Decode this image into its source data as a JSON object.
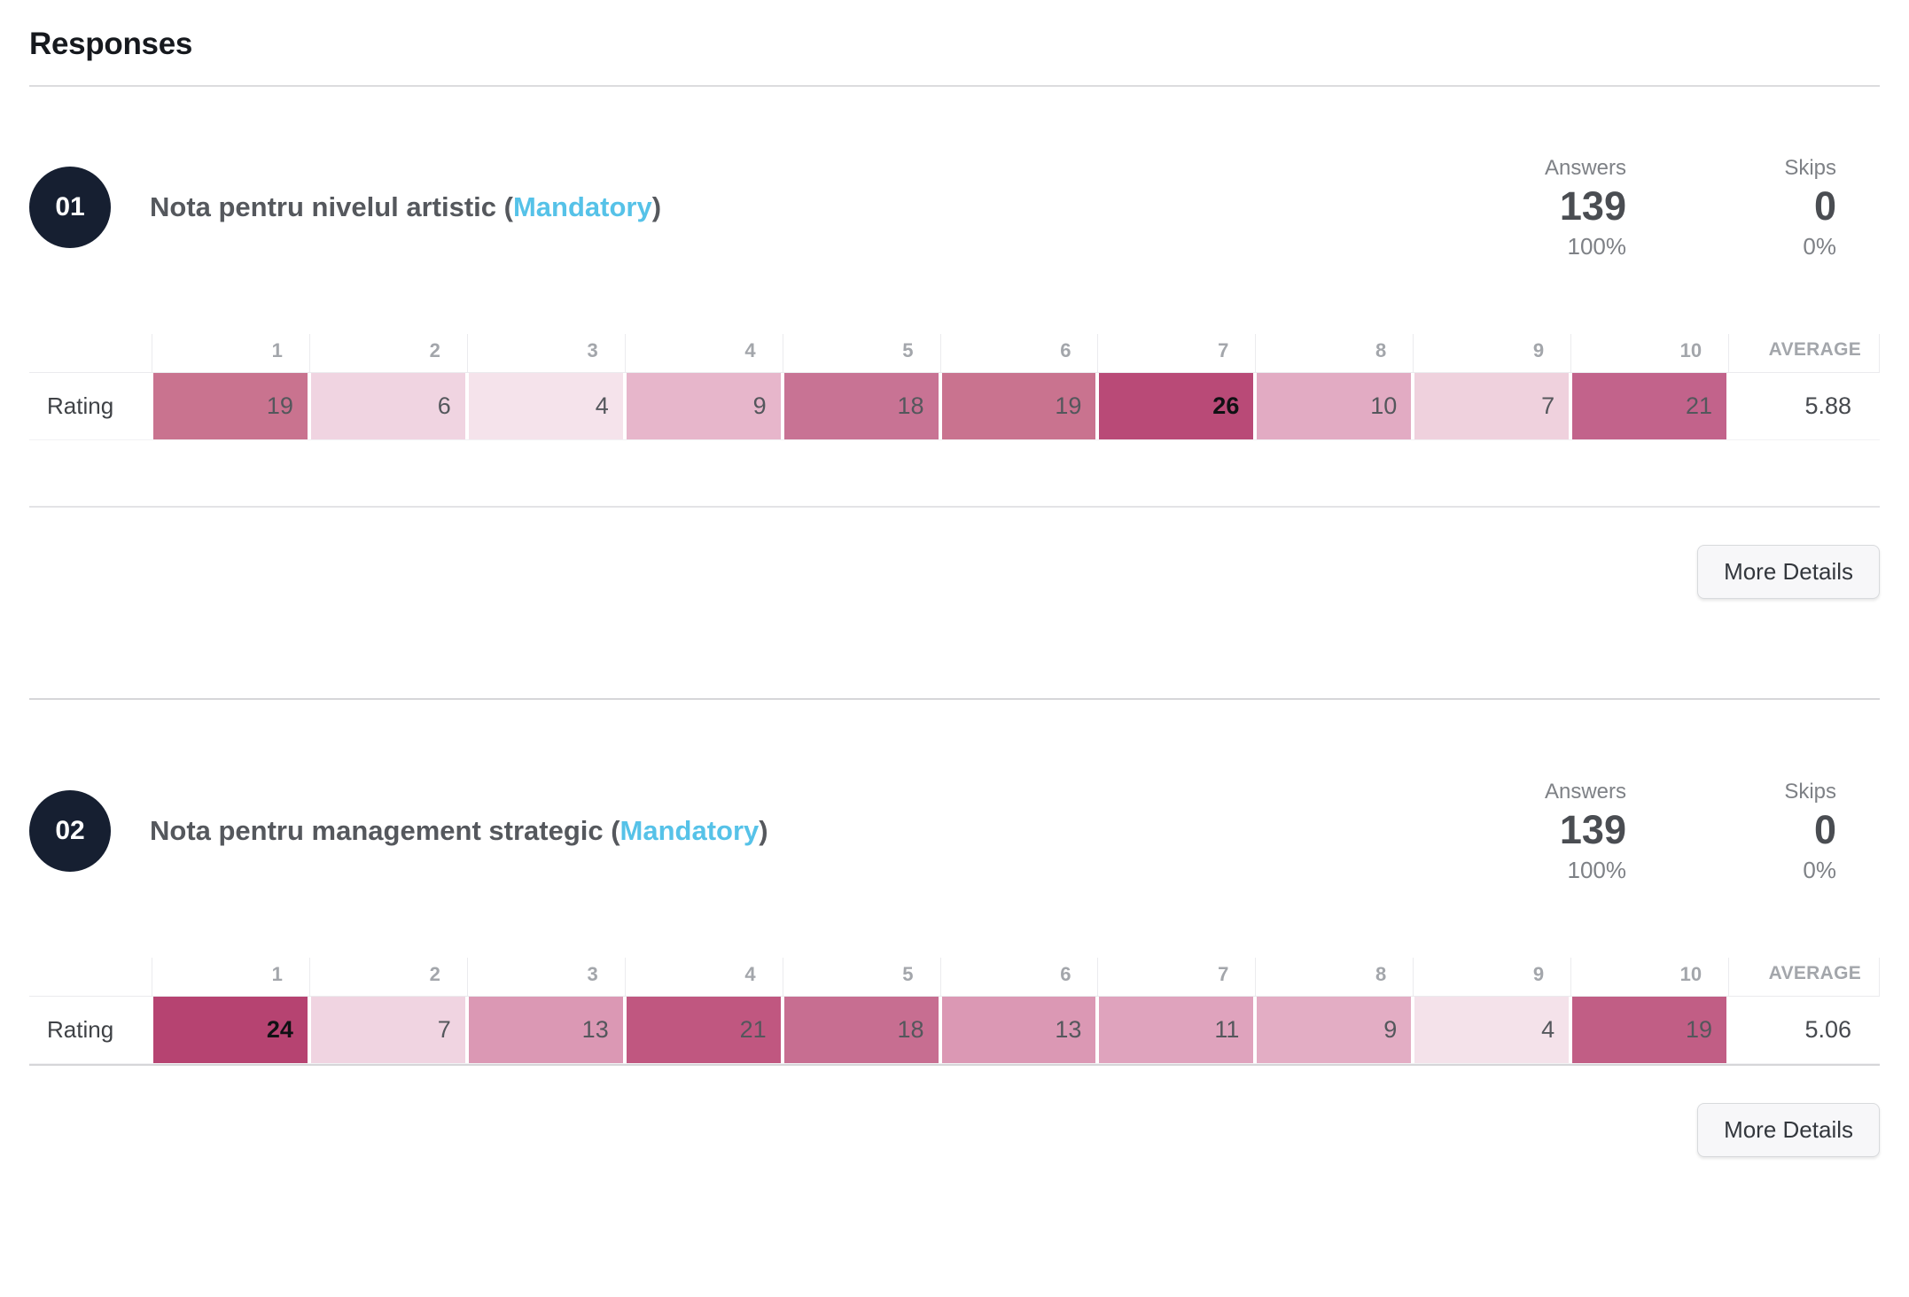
{
  "header": {
    "title": "Responses"
  },
  "colors": {
    "mandatory_accent": "#56c2e8",
    "question_badge": "#161f31",
    "heatmap_max": "#b84873"
  },
  "questions": [
    {
      "number": "01",
      "title": "Nota pentru nivelul artistic",
      "open_paren": " (",
      "mandatory": "Mandatory",
      "close_paren": ")",
      "answers_label": "Answers",
      "answers_count": "139",
      "answers_percent": "100%",
      "skips_label": "Skips",
      "skips_count": "0",
      "skips_percent": "0%",
      "row_label": "Rating",
      "scale": [
        "1",
        "2",
        "3",
        "4",
        "5",
        "6",
        "7",
        "8",
        "9",
        "10"
      ],
      "average_label": "AVERAGE",
      "average_value": "5.88",
      "cells": [
        {
          "value": "19",
          "bg": "#c9738f",
          "text": "#54575c",
          "weight": "400"
        },
        {
          "value": "6",
          "bg": "#f0d4e1",
          "text": "#54575c",
          "weight": "400"
        },
        {
          "value": "4",
          "bg": "#f5e3eb",
          "text": "#54575c",
          "weight": "400"
        },
        {
          "value": "9",
          "bg": "#e7b6cb",
          "text": "#54575c",
          "weight": "400"
        },
        {
          "value": "18",
          "bg": "#c87394",
          "text": "#54575c",
          "weight": "400"
        },
        {
          "value": "19",
          "bg": "#c9738f",
          "text": "#54575c",
          "weight": "400"
        },
        {
          "value": "26",
          "bg": "#b94a77",
          "text": "#101114",
          "weight": "700"
        },
        {
          "value": "10",
          "bg": "#e2abc3",
          "text": "#54575c",
          "weight": "400"
        },
        {
          "value": "7",
          "bg": "#efd1dd",
          "text": "#54575c",
          "weight": "400"
        },
        {
          "value": "21",
          "bg": "#c2638b",
          "text": "#54575c",
          "weight": "400"
        }
      ],
      "more_details_label": "More Details"
    },
    {
      "number": "02",
      "title": "Nota pentru management strategic",
      "open_paren": " (",
      "mandatory": "Mandatory",
      "close_paren": ")",
      "answers_label": "Answers",
      "answers_count": "139",
      "answers_percent": "100%",
      "skips_label": "Skips",
      "skips_count": "0",
      "skips_percent": "0%",
      "row_label": "Rating",
      "scale": [
        "1",
        "2",
        "3",
        "4",
        "5",
        "6",
        "7",
        "8",
        "9",
        "10"
      ],
      "average_label": "AVERAGE",
      "average_value": "5.06",
      "cells": [
        {
          "value": "24",
          "bg": "#b64371",
          "text": "#101114",
          "weight": "700"
        },
        {
          "value": "7",
          "bg": "#f0d4e1",
          "text": "#54575c",
          "weight": "400"
        },
        {
          "value": "13",
          "bg": "#db98b4",
          "text": "#54575c",
          "weight": "400"
        },
        {
          "value": "21",
          "bg": "#c05780",
          "text": "#54575c",
          "weight": "400"
        },
        {
          "value": "18",
          "bg": "#c76e91",
          "text": "#54575c",
          "weight": "400"
        },
        {
          "value": "13",
          "bg": "#db98b4",
          "text": "#54575c",
          "weight": "400"
        },
        {
          "value": "11",
          "bg": "#dfa3bd",
          "text": "#54575c",
          "weight": "400"
        },
        {
          "value": "9",
          "bg": "#e3adc4",
          "text": "#54575c",
          "weight": "400"
        },
        {
          "value": "4",
          "bg": "#f4e2ea",
          "text": "#54575c",
          "weight": "400"
        },
        {
          "value": "19",
          "bg": "#c15e85",
          "text": "#54575c",
          "weight": "400"
        }
      ],
      "more_details_label": "More Details"
    }
  ],
  "chart_data": [
    {
      "type": "heatmap",
      "title": "Nota pentru nivelul artistic (Mandatory)",
      "rows": [
        "Rating"
      ],
      "categories": [
        "1",
        "2",
        "3",
        "4",
        "5",
        "6",
        "7",
        "8",
        "9",
        "10"
      ],
      "values": [
        [
          19,
          6,
          4,
          9,
          18,
          19,
          26,
          10,
          7,
          21
        ]
      ],
      "average": 5.88,
      "answers": 139,
      "answers_percent": "100%",
      "skips": 0,
      "skips_percent": "0%"
    },
    {
      "type": "heatmap",
      "title": "Nota pentru management strategic (Mandatory)",
      "rows": [
        "Rating"
      ],
      "categories": [
        "1",
        "2",
        "3",
        "4",
        "5",
        "6",
        "7",
        "8",
        "9",
        "10"
      ],
      "values": [
        [
          24,
          7,
          13,
          21,
          18,
          13,
          11,
          9,
          4,
          19
        ]
      ],
      "average": 5.06,
      "answers": 139,
      "answers_percent": "100%",
      "skips": 0,
      "skips_percent": "0%"
    }
  ]
}
